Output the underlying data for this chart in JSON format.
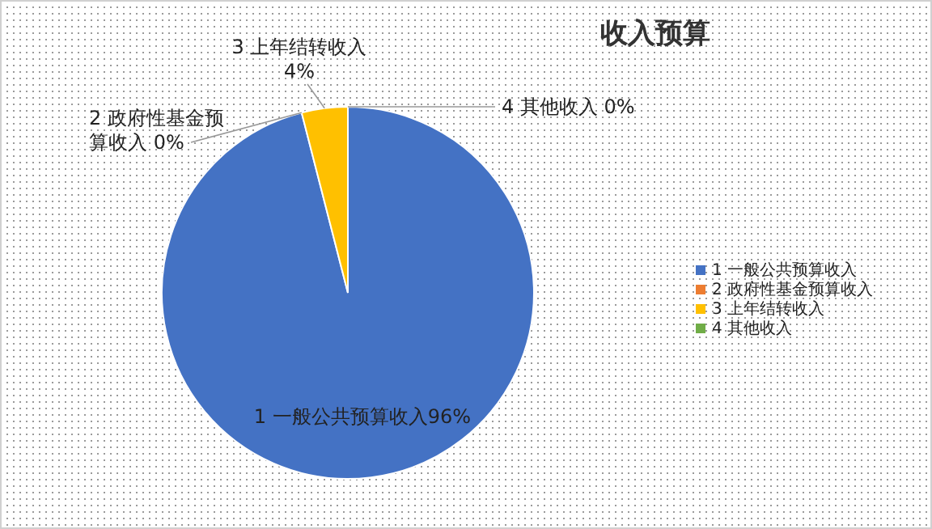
{
  "chart_data": {
    "type": "pie",
    "title": "收入预算",
    "categories": [
      "1 一般公共预算收入",
      "2 政府性基金预算收入",
      "3 上年结转收入",
      "4 其他收入"
    ],
    "values": [
      96,
      0,
      4,
      0
    ],
    "colors": [
      "#4472c4",
      "#ed7d31",
      "#ffc000",
      "#70ad47"
    ],
    "value_labels": [
      "96%",
      "0%",
      "4%",
      "0%"
    ],
    "legend": "right"
  }
}
